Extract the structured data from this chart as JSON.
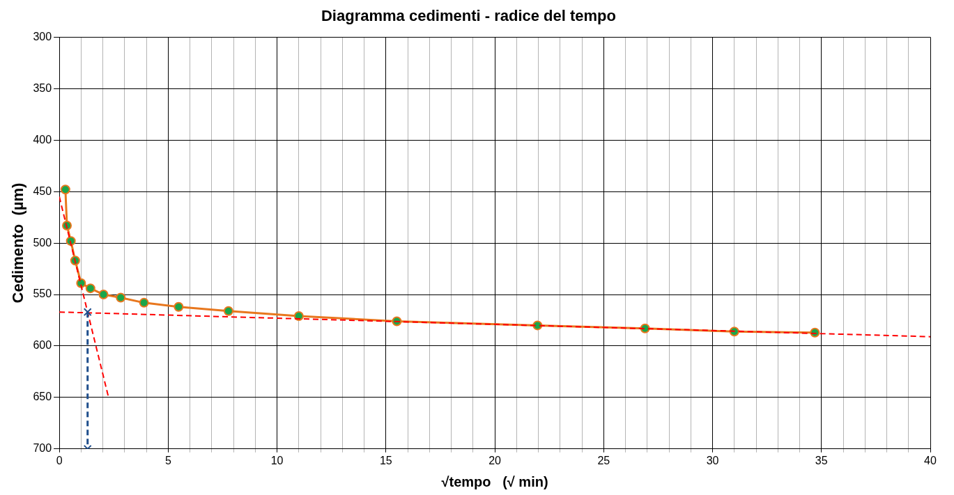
{
  "chart_data": {
    "type": "line",
    "title": "Diagramma cedimenti - radice del tempo",
    "xlabel": "√tempo   (√ min)",
    "ylabel": "Cedimento  (µm)",
    "xlim": [
      0,
      40
    ],
    "ylim": [
      700,
      300
    ],
    "xticks": [
      0,
      {
        "value": 1,
        "label": null
      },
      {
        "value": 2,
        "label": null
      },
      {
        "value": 3,
        "label": null
      },
      {
        "value": 4,
        "label": null
      },
      5,
      {
        "value": 6,
        "label": null
      },
      {
        "value": 7,
        "label": null
      },
      {
        "value": 8,
        "label": null
      },
      {
        "value": 9,
        "label": null
      },
      10,
      {
        "value": 11,
        "label": null
      },
      {
        "value": 12,
        "label": null
      },
      {
        "value": 13,
        "label": null
      },
      {
        "value": 14,
        "label": null
      },
      15,
      {
        "value": 16,
        "label": null
      },
      {
        "value": 17,
        "label": null
      },
      {
        "value": 18,
        "label": null
      },
      {
        "value": 19,
        "label": null
      },
      20,
      {
        "value": 21,
        "label": null
      },
      {
        "value": 22,
        "label": null
      },
      {
        "value": 23,
        "label": null
      },
      {
        "value": 24,
        "label": null
      },
      25,
      {
        "value": 26,
        "label": null
      },
      {
        "value": 27,
        "label": null
      },
      {
        "value": 28,
        "label": null
      },
      {
        "value": 29,
        "label": null
      },
      30,
      {
        "value": 31,
        "label": null
      },
      {
        "value": 32,
        "label": null
      },
      {
        "value": 33,
        "label": null
      },
      {
        "value": 34,
        "label": null
      },
      35,
      {
        "value": 36,
        "label": null
      },
      {
        "value": 37,
        "label": null
      },
      {
        "value": 38,
        "label": null
      },
      {
        "value": 39,
        "label": null
      },
      40
    ],
    "yticks": [
      300,
      350,
      400,
      450,
      500,
      550,
      600,
      650,
      700
    ],
    "grid": true,
    "legend": false,
    "series": [
      {
        "type": "line",
        "color": "#e8771e",
        "marker": "circle",
        "line_style": "solid",
        "x": [
          0.28,
          0.35,
          0.53,
          0.73,
          1.0,
          1.43,
          2.03,
          2.82,
          3.89,
          5.48,
          7.77,
          11.0,
          15.5,
          21.96,
          26.9,
          31.0,
          34.7
        ],
        "values": [
          448,
          483,
          498,
          517,
          539,
          544,
          550,
          553,
          558,
          562,
          566,
          571,
          576,
          580,
          583,
          586,
          587
        ],
        "colors": [
          "#1aa64a",
          "#1aa64a",
          "#1aa64a",
          "#1aa64a",
          "#1aa64a",
          "#1aa64a",
          "#1aa64a",
          "#1aa64a",
          "#1aa64a",
          "#1aa64a",
          "#1aa64a",
          "#1aa64a",
          "#1aa64a",
          "#1aa64a",
          "#1aa64a",
          "#1aa64a",
          "#1aa64a"
        ]
      },
      {
        "type": "line",
        "color": "#ff0000",
        "marker": "none",
        "line_style": "dashed",
        "x": [
          0,
          40
        ],
        "values": [
          567,
          591
        ]
      },
      {
        "type": "line",
        "color": "#ff0000",
        "marker": "none",
        "line_style": "dashed",
        "x": [
          0,
          2.25
        ],
        "values": [
          455,
          649
        ]
      },
      {
        "type": "line",
        "color": "#1f4e8c",
        "marker": "cross",
        "line_style": "dashed",
        "x": [
          1.3,
          1.3
        ],
        "values": [
          567,
          700
        ]
      }
    ]
  }
}
